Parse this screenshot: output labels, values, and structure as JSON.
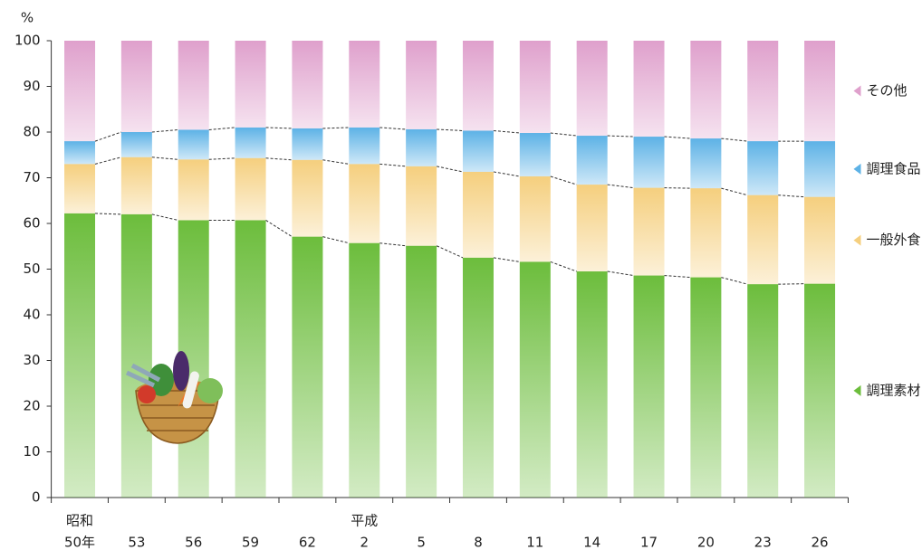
{
  "chart_data": {
    "type": "stacked_bar",
    "y_unit_label": "%",
    "categories": [
      "50年",
      "53",
      "56",
      "59",
      "62",
      "2",
      "5",
      "8",
      "11",
      "14",
      "17",
      "20",
      "23",
      "26"
    ],
    "eras": [
      {
        "label": "昭和",
        "index": 0
      },
      {
        "label": "平成",
        "index": 5
      }
    ],
    "series": [
      {
        "name": "調理素材",
        "color": "#6cbd3c",
        "values": [
          62.2,
          62,
          60.7,
          60.7,
          57.1,
          55.7,
          55.1,
          52.5,
          51.6,
          49.5,
          48.6,
          48.2,
          46.7,
          46.8
        ]
      },
      {
        "name": "一般外食",
        "color": "#f5cf7e",
        "values": [
          10.8,
          12.5,
          13.3,
          13.6,
          16.8,
          17.3,
          17.4,
          18.8,
          18.7,
          19,
          19.2,
          19.5,
          19.5,
          19
        ]
      },
      {
        "name": "調理食品",
        "color": "#5db2e6",
        "values": [
          5,
          5.5,
          6.5,
          6.7,
          6.9,
          8,
          8.1,
          9,
          9.5,
          10.7,
          11.2,
          10.9,
          11.8,
          12.2
        ]
      },
      {
        "name": "その他",
        "color": "#dfa0cc",
        "values": [
          22,
          20,
          19.5,
          19,
          19.2,
          19,
          19.4,
          19.7,
          20.2,
          20.8,
          21,
          21.4,
          22,
          22
        ]
      }
    ],
    "ylim": [
      0,
      100
    ],
    "yticks": [
      0,
      10,
      20,
      30,
      40,
      50,
      60,
      70,
      80,
      90,
      100
    ],
    "grid": false,
    "legend": "right"
  }
}
